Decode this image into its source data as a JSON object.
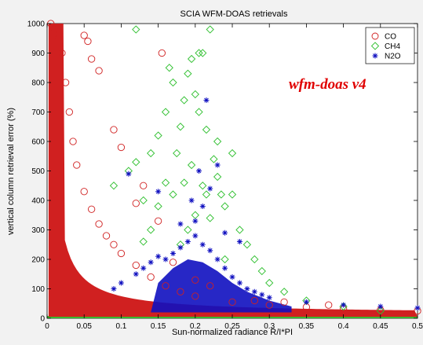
{
  "chart_data": {
    "type": "scatter",
    "title": "SCIA WFM-DOAS retrievals",
    "xlabel": "Sun-normalized radiance R/I*PI",
    "ylabel": "vertical column retrieval error (%)",
    "xlim": [
      0,
      0.5
    ],
    "ylim": [
      0,
      1000
    ],
    "x_ticks": [
      "0",
      "0.05",
      "0.1",
      "0.15",
      "0.2",
      "0.25",
      "0.3",
      "0.35",
      "0.4",
      "0.45",
      "0.5"
    ],
    "y_ticks": [
      "0",
      "100",
      "200",
      "300",
      "400",
      "500",
      "600",
      "700",
      "800",
      "900",
      "1000"
    ],
    "annotation": "wfm-doas v4",
    "legend_position": "top-right",
    "grid": false,
    "series": [
      {
        "name": "CO",
        "marker": "circle",
        "color": "#d02020",
        "description_points": [
          [
            0.005,
            1000
          ],
          [
            0.01,
            980
          ],
          [
            0.015,
            950
          ],
          [
            0.02,
            900
          ],
          [
            0.025,
            800
          ],
          [
            0.03,
            700
          ],
          [
            0.035,
            600
          ],
          [
            0.04,
            520
          ],
          [
            0.05,
            430
          ],
          [
            0.06,
            370
          ],
          [
            0.07,
            320
          ],
          [
            0.08,
            280
          ],
          [
            0.09,
            250
          ],
          [
            0.1,
            220
          ],
          [
            0.12,
            180
          ],
          [
            0.14,
            140
          ],
          [
            0.16,
            110
          ],
          [
            0.18,
            90
          ],
          [
            0.2,
            75
          ],
          [
            0.25,
            55
          ],
          [
            0.3,
            45
          ],
          [
            0.35,
            38
          ],
          [
            0.4,
            32
          ],
          [
            0.45,
            28
          ],
          [
            0.5,
            25
          ],
          [
            0.05,
            960
          ],
          [
            0.055,
            940
          ],
          [
            0.06,
            880
          ],
          [
            0.07,
            840
          ],
          [
            0.09,
            640
          ],
          [
            0.1,
            580
          ],
          [
            0.12,
            390
          ],
          [
            0.13,
            450
          ],
          [
            0.15,
            330
          ],
          [
            0.155,
            900
          ],
          [
            0.17,
            190
          ],
          [
            0.2,
            130
          ],
          [
            0.22,
            110
          ],
          [
            0.28,
            60
          ],
          [
            0.32,
            55
          ],
          [
            0.38,
            45
          ]
        ]
      },
      {
        "name": "CH4",
        "marker": "diamond",
        "color": "#30c030",
        "description_points": [
          [
            0.09,
            450
          ],
          [
            0.11,
            500
          ],
          [
            0.12,
            530
          ],
          [
            0.13,
            400
          ],
          [
            0.14,
            560
          ],
          [
            0.15,
            620
          ],
          [
            0.16,
            700
          ],
          [
            0.17,
            800
          ],
          [
            0.175,
            560
          ],
          [
            0.18,
            650
          ],
          [
            0.185,
            740
          ],
          [
            0.19,
            830
          ],
          [
            0.195,
            880
          ],
          [
            0.2,
            760
          ],
          [
            0.205,
            700
          ],
          [
            0.21,
            900
          ],
          [
            0.215,
            640
          ],
          [
            0.22,
            980
          ],
          [
            0.225,
            540
          ],
          [
            0.23,
            480
          ],
          [
            0.235,
            420
          ],
          [
            0.24,
            380
          ],
          [
            0.25,
            560
          ],
          [
            0.26,
            300
          ],
          [
            0.27,
            250
          ],
          [
            0.28,
            200
          ],
          [
            0.29,
            160
          ],
          [
            0.3,
            120
          ],
          [
            0.32,
            90
          ],
          [
            0.35,
            60
          ],
          [
            0.4,
            40
          ],
          [
            0.45,
            25
          ],
          [
            0.2,
            350
          ],
          [
            0.19,
            300
          ],
          [
            0.18,
            250
          ],
          [
            0.17,
            420
          ],
          [
            0.16,
            460
          ],
          [
            0.15,
            380
          ],
          [
            0.14,
            300
          ],
          [
            0.13,
            260
          ],
          [
            0.22,
            340
          ],
          [
            0.24,
            200
          ],
          [
            0.21,
            450
          ],
          [
            0.23,
            600
          ],
          [
            0.25,
            420
          ],
          [
            0.12,
            980
          ],
          [
            0.165,
            850
          ],
          [
            0.205,
            900
          ],
          [
            0.215,
            420
          ],
          [
            0.195,
            520
          ],
          [
            0.185,
            460
          ]
        ]
      },
      {
        "name": "N2O",
        "marker": "asterisk",
        "color": "#1010c0",
        "description_points": [
          [
            0.12,
            150
          ],
          [
            0.13,
            170
          ],
          [
            0.14,
            190
          ],
          [
            0.15,
            210
          ],
          [
            0.16,
            200
          ],
          [
            0.17,
            220
          ],
          [
            0.18,
            240
          ],
          [
            0.19,
            260
          ],
          [
            0.2,
            280
          ],
          [
            0.21,
            250
          ],
          [
            0.22,
            230
          ],
          [
            0.23,
            200
          ],
          [
            0.24,
            170
          ],
          [
            0.25,
            140
          ],
          [
            0.26,
            120
          ],
          [
            0.27,
            100
          ],
          [
            0.28,
            90
          ],
          [
            0.29,
            80
          ],
          [
            0.3,
            70
          ],
          [
            0.35,
            55
          ],
          [
            0.4,
            45
          ],
          [
            0.45,
            40
          ],
          [
            0.5,
            35
          ],
          [
            0.2,
            330
          ],
          [
            0.21,
            380
          ],
          [
            0.22,
            440
          ],
          [
            0.23,
            520
          ],
          [
            0.215,
            740
          ],
          [
            0.205,
            500
          ],
          [
            0.195,
            400
          ],
          [
            0.18,
            320
          ],
          [
            0.11,
            490
          ],
          [
            0.24,
            290
          ],
          [
            0.26,
            260
          ],
          [
            0.1,
            120
          ],
          [
            0.09,
            100
          ],
          [
            0.15,
            430
          ]
        ]
      }
    ]
  }
}
